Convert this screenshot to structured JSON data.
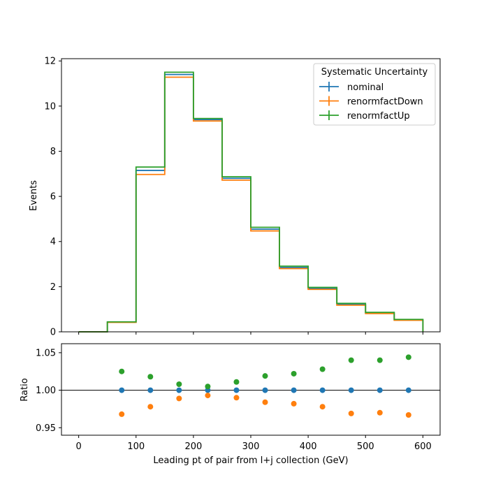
{
  "chart_data": [
    {
      "type": "line",
      "panel": "main",
      "title": "",
      "xlabel": "",
      "ylabel": "Events",
      "xlim": [
        -30,
        630
      ],
      "ylim": [
        0,
        12.1
      ],
      "yticks": [
        0,
        2,
        4,
        6,
        8,
        10,
        12
      ],
      "ytick_labels": [
        "0",
        "2",
        "4",
        "6",
        "8",
        "10",
        "12"
      ],
      "grid": false,
      "legend": {
        "title": "Systematic Uncertainty",
        "placement": "top-right"
      },
      "bin_edges": [
        0,
        50,
        100,
        150,
        200,
        250,
        300,
        350,
        400,
        450,
        500,
        550,
        600
      ],
      "series": [
        {
          "name": "nominal",
          "color": "#1f77b4",
          "values": [
            0.0,
            0.43,
            7.15,
            11.4,
            9.4,
            6.8,
            4.55,
            2.85,
            1.92,
            1.21,
            0.83,
            0.53
          ]
        },
        {
          "name": "renormfactDown",
          "color": "#ff7f0e",
          "values": [
            0.0,
            0.42,
            6.97,
            11.28,
            9.34,
            6.72,
            4.47,
            2.8,
            1.88,
            1.18,
            0.81,
            0.51
          ]
        },
        {
          "name": "renormfactUp",
          "color": "#2ca02c",
          "values": [
            0.0,
            0.44,
            7.3,
            11.5,
            9.45,
            6.87,
            4.63,
            2.91,
            1.97,
            1.26,
            0.86,
            0.55
          ]
        }
      ]
    },
    {
      "type": "scatter",
      "panel": "ratio",
      "xlabel": "Leading pt of pair from l+j collection (GeV)",
      "ylabel": "Ratio",
      "xlim": [
        -30,
        630
      ],
      "ylim": [
        0.94,
        1.062
      ],
      "yticks": [
        0.95,
        1.0,
        1.05
      ],
      "ytick_labels": [
        "0.95",
        "1.00",
        "1.05"
      ],
      "xticks": [
        0,
        100,
        200,
        300,
        400,
        500,
        600
      ],
      "xtick_labels": [
        "0",
        "100",
        "200",
        "300",
        "400",
        "500",
        "600"
      ],
      "reference_line": 1.0,
      "grid": false,
      "x": [
        75,
        125,
        175,
        225,
        275,
        325,
        375,
        425,
        475,
        525,
        575
      ],
      "series": [
        {
          "name": "nominal",
          "color": "#1f77b4",
          "values": [
            1.0,
            1.0,
            1.0,
            1.0,
            1.0,
            1.0,
            1.0,
            1.0,
            1.0,
            1.0,
            1.0
          ]
        },
        {
          "name": "renormfactDown",
          "color": "#ff7f0e",
          "values": [
            0.968,
            0.978,
            0.989,
            0.993,
            0.99,
            0.984,
            0.982,
            0.978,
            0.969,
            0.97,
            0.967
          ]
        },
        {
          "name": "renormfactUp",
          "color": "#2ca02c",
          "values": [
            1.025,
            1.018,
            1.008,
            1.005,
            1.011,
            1.019,
            1.022,
            1.028,
            1.04,
            1.04,
            1.044
          ]
        }
      ]
    }
  ]
}
